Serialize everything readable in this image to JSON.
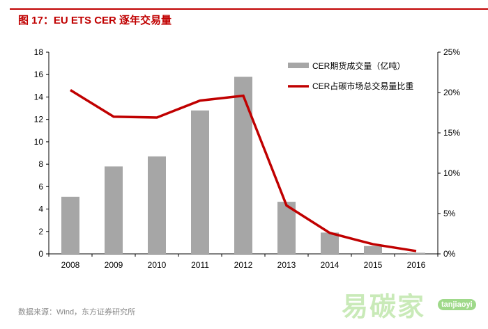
{
  "header": {
    "title": "图 17：EU ETS CER 逐年交易量"
  },
  "footer": {
    "source": "数据来源：Wind，东方证券研究所"
  },
  "watermark": {
    "text": "易碳家",
    "domain": "tanjiaoyi"
  },
  "colors": {
    "bar": "#a6a6a6",
    "line": "#c00000",
    "title": "#c00000"
  },
  "chart_data": {
    "type": "bar+line",
    "title": "",
    "categories": [
      "2008",
      "2009",
      "2010",
      "2011",
      "2012",
      "2013",
      "2014",
      "2015",
      "2016"
    ],
    "series": [
      {
        "name": "CER期货成交量（亿吨）",
        "type": "bar",
        "axis": "left",
        "values": [
          5.1,
          7.8,
          8.7,
          12.8,
          15.8,
          4.65,
          1.9,
          0.7,
          0.1
        ]
      },
      {
        "name": "CER占碳市场总交易量比重",
        "type": "line",
        "axis": "right",
        "values": [
          20.3,
          17.0,
          16.9,
          19.0,
          19.6,
          6.0,
          2.6,
          1.2,
          0.35
        ]
      }
    ],
    "left_axis": {
      "ylim": [
        0,
        18
      ],
      "ticks": [
        "0",
        "2",
        "4",
        "6",
        "8",
        "10",
        "12",
        "14",
        "16",
        "18"
      ]
    },
    "right_axis": {
      "ylim": [
        0,
        25
      ],
      "ticks": [
        "0%",
        "5%",
        "10%",
        "15%",
        "20%",
        "25%"
      ]
    },
    "legend_position": "top-right",
    "grid": false
  }
}
